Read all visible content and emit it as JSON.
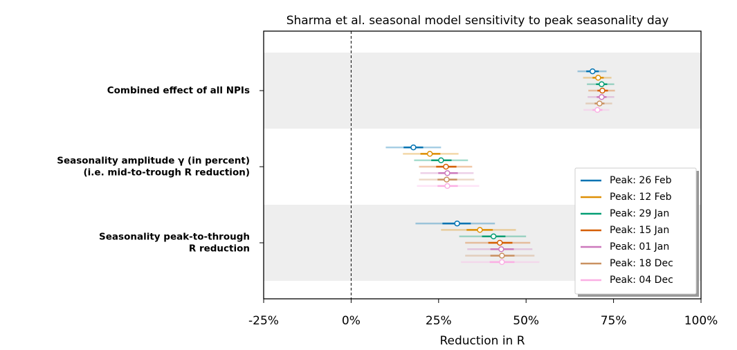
{
  "chart_data": {
    "type": "forest",
    "title": "Sharma et al. seasonal model sensitivity to peak seasonality day",
    "x_label": "Reduction in R",
    "categories": [
      [
        "Combined effect of all NPIs"
      ],
      [
        "Seasonality amplitude γ (in percent)",
        "(i.e. mid-to-trough R reduction)"
      ],
      [
        "Seasonality peak-to-through",
        "R reduction"
      ]
    ],
    "xlim": [
      -25,
      100
    ],
    "xticks": [
      {
        "value": -25,
        "label": "-25%"
      },
      {
        "value": 0,
        "label": "0%"
      },
      {
        "value": 25,
        "label": "25%"
      },
      {
        "value": 50,
        "label": "50%"
      },
      {
        "value": 75,
        "label": "75%"
      },
      {
        "value": 100,
        "label": "100%"
      }
    ],
    "reference_line": 0,
    "legend": "lower right",
    "series": [
      {
        "name": "Peak: 26 Feb",
        "color": "#0173b2",
        "values": [
          69.0,
          17.8,
          30.3
        ],
        "lo50": [
          67.2,
          15.0,
          26.1
        ],
        "hi50": [
          70.8,
          20.6,
          34.2
        ],
        "lo95": [
          64.7,
          9.9,
          18.4
        ],
        "hi95": [
          73.0,
          25.7,
          41.1
        ]
      },
      {
        "name": "Peak: 12 Feb",
        "color": "#de8f05",
        "values": [
          70.6,
          22.5,
          36.8
        ],
        "lo50": [
          69.0,
          19.8,
          33.0
        ],
        "hi50": [
          72.2,
          25.5,
          40.5
        ],
        "lo95": [
          66.3,
          14.8,
          25.7
        ],
        "hi95": [
          74.4,
          30.7,
          47.1
        ]
      },
      {
        "name": "Peak: 29 Jan",
        "color": "#029e73",
        "values": [
          71.6,
          25.7,
          40.7
        ],
        "lo50": [
          70.0,
          22.9,
          37.4
        ],
        "hi50": [
          73.2,
          28.7,
          44.1
        ],
        "lo95": [
          67.4,
          18.0,
          30.9
        ],
        "hi95": [
          75.2,
          33.4,
          50.0
        ]
      },
      {
        "name": "Peak: 15 Jan",
        "color": "#d55e00",
        "values": [
          71.8,
          27.1,
          42.5
        ],
        "lo50": [
          70.4,
          24.3,
          39.2
        ],
        "hi50": [
          73.4,
          30.1,
          46.1
        ],
        "lo95": [
          67.8,
          19.4,
          32.6
        ],
        "hi95": [
          75.4,
          34.6,
          51.2
        ]
      },
      {
        "name": "Peak: 01 Jan",
        "color": "#cc78bc",
        "values": [
          71.6,
          27.5,
          42.9
        ],
        "lo50": [
          70.2,
          24.9,
          39.8
        ],
        "hi50": [
          73.0,
          30.5,
          46.5
        ],
        "lo95": [
          67.6,
          19.8,
          33.2
        ],
        "hi95": [
          75.2,
          35.0,
          51.8
        ]
      },
      {
        "name": "Peak: 18 Dec",
        "color": "#ca9161",
        "values": [
          71.0,
          27.3,
          43.1
        ],
        "lo50": [
          69.6,
          24.7,
          39.8
        ],
        "hi50": [
          72.4,
          30.3,
          46.7
        ],
        "lo95": [
          67.0,
          19.4,
          32.6
        ],
        "hi95": [
          74.6,
          35.2,
          52.4
        ]
      },
      {
        "name": "Peak: 04 Dec",
        "color": "#fbafe4",
        "values": [
          70.4,
          27.5,
          43.1
        ],
        "lo50": [
          69.0,
          24.7,
          39.6
        ],
        "hi50": [
          71.8,
          30.5,
          46.7
        ],
        "lo95": [
          66.4,
          18.8,
          31.4
        ],
        "hi95": [
          73.8,
          36.6,
          53.8
        ]
      }
    ]
  }
}
